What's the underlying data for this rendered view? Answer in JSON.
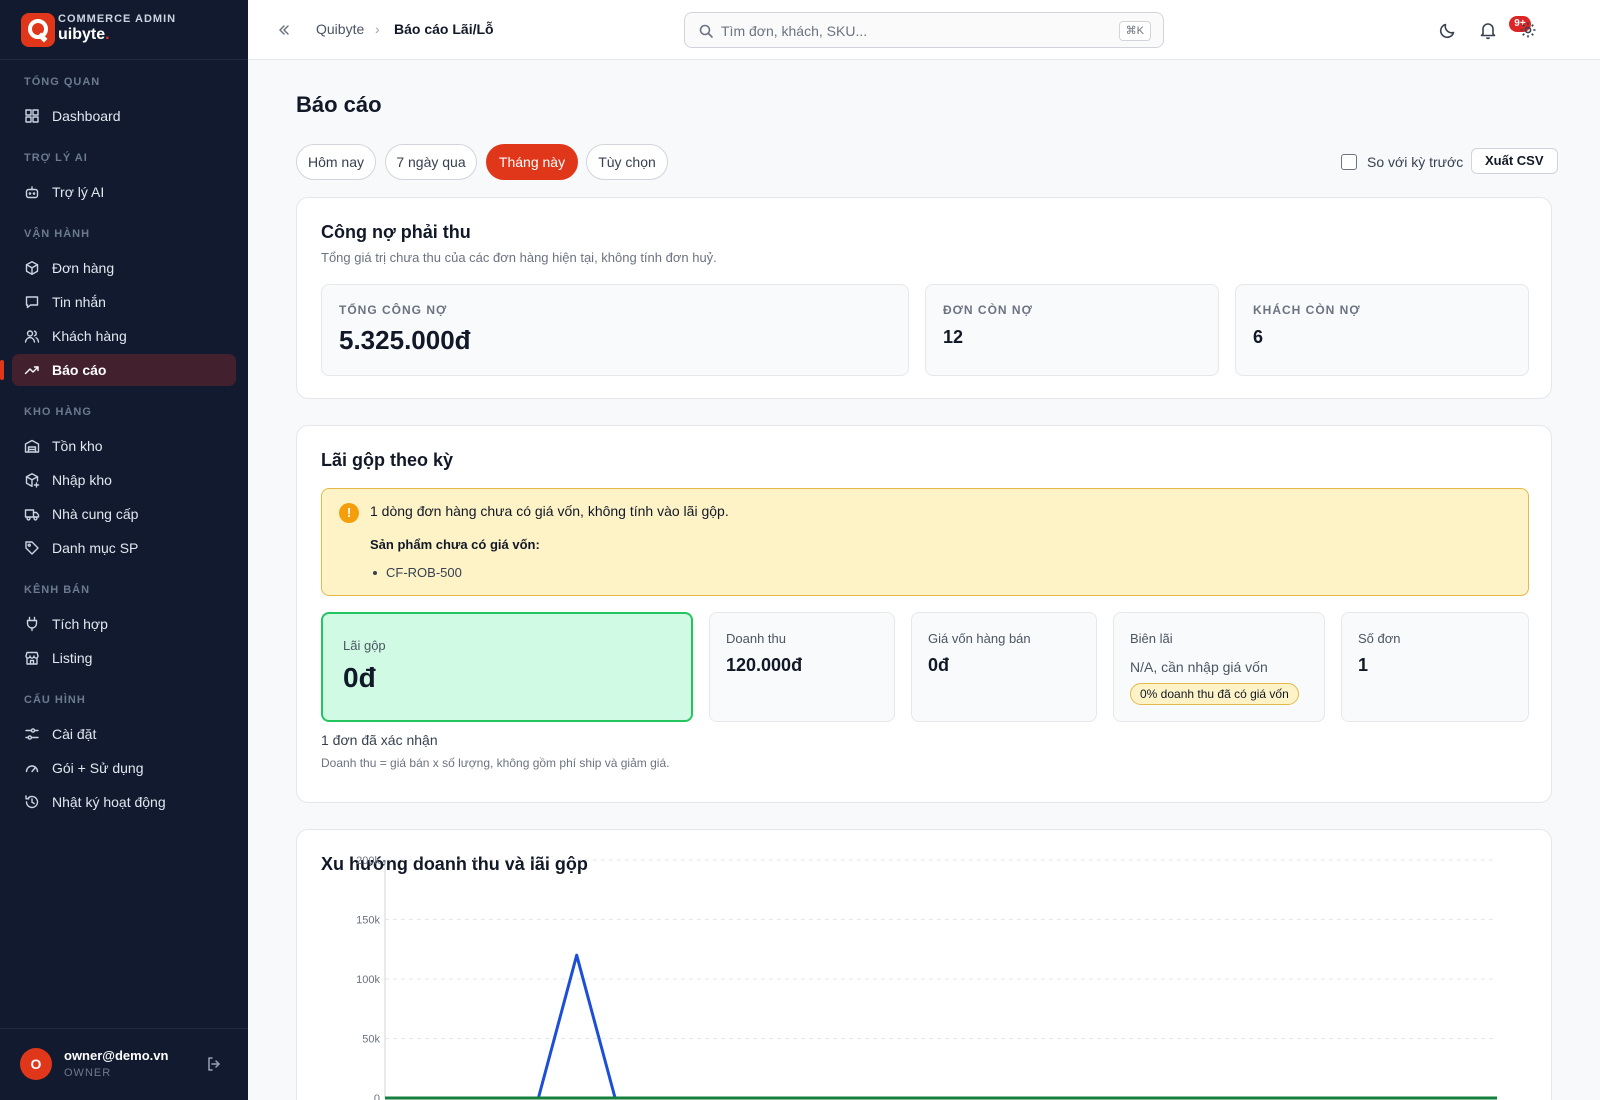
{
  "brand": {
    "subtitle": "COMMERCE ADMIN",
    "name": "uibyte",
    "dot": "."
  },
  "sidebar": {
    "sections": [
      {
        "title": "TỔNG QUAN",
        "items": [
          {
            "label": "Dashboard",
            "icon": "grid-icon"
          }
        ]
      },
      {
        "title": "TRỢ LÝ AI",
        "items": [
          {
            "label": "Trợ lý AI",
            "icon": "bot-icon"
          }
        ]
      },
      {
        "title": "VẬN HÀNH",
        "items": [
          {
            "label": "Đơn hàng",
            "icon": "package-icon"
          },
          {
            "label": "Tin nhắn",
            "icon": "message-icon"
          },
          {
            "label": "Khách hàng",
            "icon": "users-icon"
          },
          {
            "label": "Báo cáo",
            "icon": "trending-up-icon",
            "active": true
          }
        ]
      },
      {
        "title": "KHO HÀNG",
        "items": [
          {
            "label": "Tồn kho",
            "icon": "warehouse-icon"
          },
          {
            "label": "Nhập kho",
            "icon": "package-plus-icon"
          },
          {
            "label": "Nhà cung cấp",
            "icon": "truck-icon"
          },
          {
            "label": "Danh mục SP",
            "icon": "tag-icon"
          }
        ]
      },
      {
        "title": "KÊNH BÁN",
        "items": [
          {
            "label": "Tích hợp",
            "icon": "plug-icon"
          },
          {
            "label": "Listing",
            "icon": "store-icon"
          }
        ]
      },
      {
        "title": "CẤU HÌNH",
        "items": [
          {
            "label": "Cài đặt",
            "icon": "sliders-icon"
          },
          {
            "label": "Gói + Sử dụng",
            "icon": "gauge-icon"
          },
          {
            "label": "Nhật ký hoạt động",
            "icon": "history-icon"
          }
        ]
      }
    ],
    "user": {
      "initial": "O",
      "email": "owner@demo.vn",
      "role": "OWNER"
    }
  },
  "topbar": {
    "breadcrumb": [
      "Quibyte",
      "Báo cáo Lãi/Lỗ"
    ],
    "breadcrumb_sep": "›",
    "search_placeholder": "Tìm đơn, khách, SKU...",
    "search_shortcut": "⌘K",
    "notif_badge": "9+"
  },
  "page": {
    "title": "Báo cáo",
    "ranges": [
      "Hôm nay",
      "7 ngày qua",
      "Tháng này",
      "Tùy chọn"
    ],
    "active_range": "Tháng này",
    "compare_label": "So với kỳ trước",
    "export_label": "Xuất CSV"
  },
  "receivables": {
    "title": "Công nợ phải thu",
    "desc": "Tổng giá trị chưa thu của các đơn hàng hiện tại, không tính đơn huỷ.",
    "total_label": "TỔNG CÔNG NỢ",
    "total_value": "5.325.000đ",
    "orders_label": "ĐƠN CÒN NỢ",
    "orders_value": "12",
    "customers_label": "KHÁCH CÒN NỢ",
    "customers_value": "6"
  },
  "profit": {
    "title": "Lãi gộp theo kỳ",
    "warning": "1 dòng đơn hàng chưa có giá vốn, không tính vào lãi gộp.",
    "warning_heading": "Sản phẩm chưa có giá vốn:",
    "missing_skus": [
      "CF-ROB-500"
    ],
    "gross_label": "Lãi gộp",
    "gross_value": "0đ",
    "revenue_label": "Doanh thu",
    "revenue_value": "120.000đ",
    "cogs_label": "Giá vốn hàng bán",
    "cogs_value": "0đ",
    "margin_label": "Biên lãi",
    "margin_value": "N/A, cần nhập giá vốn",
    "margin_chip": "0% doanh thu đã có giá vốn",
    "orders_label": "Số đơn",
    "orders_value": "1",
    "confirmed": "1 đơn đã xác nhận",
    "note": "Doanh thu = giá bán x số lượng, không gồm phí ship và giảm giá."
  },
  "trend": {
    "title": "Xu hướng doanh thu và lãi gộp"
  },
  "colors": {
    "accent": "#e0371b",
    "sidebar_bg": "#111a2e",
    "revenue_line": "#1d4ed8",
    "profit_line": "#15803d"
  },
  "chart_data": {
    "type": "line",
    "ylabel": "",
    "xlabel": "",
    "yticks": [
      "0",
      "50k",
      "100k",
      "150k",
      "200k"
    ],
    "ylim": [
      0,
      200000
    ],
    "grid": true,
    "x": [
      1,
      2,
      3,
      4,
      5,
      6,
      7,
      8,
      9,
      10,
      11,
      12,
      13,
      14,
      15,
      16,
      17,
      18,
      19,
      20,
      21,
      22,
      23,
      24,
      25,
      26,
      27,
      28,
      29,
      30
    ],
    "series": [
      {
        "values": [
          0,
          0,
          0,
          0,
          0,
          120000,
          0,
          0,
          0,
          0,
          0,
          0,
          0,
          0,
          0,
          0,
          0,
          0,
          0,
          0,
          0,
          0,
          0,
          0,
          0,
          0,
          0,
          0,
          0,
          0
        ],
        "color": "#1d4ed8"
      },
      {
        "values": [
          0,
          0,
          0,
          0,
          0,
          0,
          0,
          0,
          0,
          0,
          0,
          0,
          0,
          0,
          0,
          0,
          0,
          0,
          0,
          0,
          0,
          0,
          0,
          0,
          0,
          0,
          0,
          0,
          0,
          0
        ],
        "color": "#15803d"
      }
    ]
  }
}
